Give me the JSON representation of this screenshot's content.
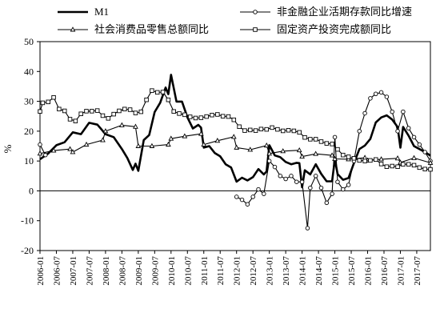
{
  "chart_data": {
    "type": "line",
    "ylabel": "%",
    "ylim": [
      -20,
      50
    ],
    "yticks": [
      -20,
      -10,
      0,
      10,
      20,
      30,
      40,
      50
    ],
    "x_tick_labels": [
      "2006-01",
      "2006-07",
      "2007-01",
      "2007-07",
      "2008-01",
      "2008-07",
      "2009-01",
      "2009-07",
      "2010-01",
      "2010-07",
      "2011-01",
      "2011-07",
      "2012-01",
      "2012-07",
      "2013-01",
      "2013-07",
      "2014-01",
      "2014-07",
      "2015-01",
      "2015-07",
      "2016-01",
      "2016-07",
      "2017-01",
      "2017-07"
    ],
    "x_range": [
      "2006-01",
      "2017-12"
    ],
    "legend_position": "top",
    "series": [
      {
        "name": "M1",
        "style": "thick-line",
        "color": "#000000",
        "points": [
          [
            "2006-01",
            10.6
          ],
          [
            "2006-04",
            12.5
          ],
          [
            "2006-07",
            15.3
          ],
          [
            "2006-10",
            16.3
          ],
          [
            "2007-01",
            19.6
          ],
          [
            "2007-04",
            19.0
          ],
          [
            "2007-07",
            22.8
          ],
          [
            "2007-10",
            22.2
          ],
          [
            "2008-01",
            19.0
          ],
          [
            "2008-04",
            18.0
          ],
          [
            "2008-07",
            14.0
          ],
          [
            "2008-09",
            11.0
          ],
          [
            "2008-11",
            7.0
          ],
          [
            "2008-12",
            9.1
          ],
          [
            "2009-01",
            6.7
          ],
          [
            "2009-03",
            17.0
          ],
          [
            "2009-05",
            18.7
          ],
          [
            "2009-07",
            26.4
          ],
          [
            "2009-09",
            29.5
          ],
          [
            "2009-11",
            34.6
          ],
          [
            "2009-12",
            32.4
          ],
          [
            "2010-01",
            38.9
          ],
          [
            "2010-03",
            29.9
          ],
          [
            "2010-05",
            29.9
          ],
          [
            "2010-07",
            24.6
          ],
          [
            "2010-09",
            20.9
          ],
          [
            "2010-11",
            22.1
          ],
          [
            "2010-12",
            21.2
          ],
          [
            "2011-01",
            14.5
          ],
          [
            "2011-03",
            15.0
          ],
          [
            "2011-05",
            12.7
          ],
          [
            "2011-07",
            11.6
          ],
          [
            "2011-09",
            8.9
          ],
          [
            "2011-11",
            7.8
          ],
          [
            "2012-01",
            3.1
          ],
          [
            "2012-03",
            4.4
          ],
          [
            "2012-05",
            3.5
          ],
          [
            "2012-07",
            4.6
          ],
          [
            "2012-09",
            7.3
          ],
          [
            "2012-11",
            5.5
          ],
          [
            "2012-12",
            6.5
          ],
          [
            "2013-01",
            15.3
          ],
          [
            "2013-03",
            11.9
          ],
          [
            "2013-05",
            11.3
          ],
          [
            "2013-07",
            9.7
          ],
          [
            "2013-09",
            8.9
          ],
          [
            "2013-11",
            9.4
          ],
          [
            "2013-12",
            9.3
          ],
          [
            "2014-01",
            1.2
          ],
          [
            "2014-02",
            6.9
          ],
          [
            "2014-04",
            5.5
          ],
          [
            "2014-06",
            8.9
          ],
          [
            "2014-08",
            5.7
          ],
          [
            "2014-10",
            3.2
          ],
          [
            "2014-12",
            3.2
          ],
          [
            "2015-01",
            10.6
          ],
          [
            "2015-02",
            5.6
          ],
          [
            "2015-04",
            3.7
          ],
          [
            "2015-06",
            4.3
          ],
          [
            "2015-08",
            9.3
          ],
          [
            "2015-10",
            14.0
          ],
          [
            "2015-12",
            15.2
          ],
          [
            "2016-02",
            17.4
          ],
          [
            "2016-04",
            22.9
          ],
          [
            "2016-06",
            24.6
          ],
          [
            "2016-08",
            25.3
          ],
          [
            "2016-10",
            23.9
          ],
          [
            "2016-12",
            21.4
          ],
          [
            "2017-01",
            14.5
          ],
          [
            "2017-02",
            21.4
          ],
          [
            "2017-04",
            18.5
          ],
          [
            "2017-06",
            15.0
          ],
          [
            "2017-08",
            14.0
          ],
          [
            "2017-10",
            13.0
          ],
          [
            "2017-12",
            11.8
          ]
        ]
      },
      {
        "name": "非金融企业活期存款同比增速",
        "style": "line-circle",
        "color": "#000000",
        "points": [
          [
            "2006-01",
            15.5
          ],
          [
            "2006-03",
            12.0
          ],
          [
            "2012-01",
            -2.0
          ],
          [
            "2012-03",
            -3.0
          ],
          [
            "2012-05",
            -4.5
          ],
          [
            "2012-07",
            -2.0
          ],
          [
            "2012-09",
            0.5
          ],
          [
            "2012-11",
            -1.0
          ],
          [
            "2013-01",
            10.0
          ],
          [
            "2013-03",
            8.0
          ],
          [
            "2013-05",
            5.0
          ],
          [
            "2013-07",
            4.0
          ],
          [
            "2013-09",
            5.0
          ],
          [
            "2013-11",
            3.0
          ],
          [
            "2014-01",
            3.0
          ],
          [
            "2014-03",
            -12.5
          ],
          [
            "2014-04",
            1.0
          ],
          [
            "2014-06",
            5.0
          ],
          [
            "2014-08",
            1.0
          ],
          [
            "2014-10",
            -4.0
          ],
          [
            "2014-12",
            -1.0
          ],
          [
            "2015-01",
            18.0
          ],
          [
            "2015-02",
            3.0
          ],
          [
            "2015-04",
            0.5
          ],
          [
            "2015-06",
            2.0
          ],
          [
            "2015-08",
            10.0
          ],
          [
            "2015-10",
            20.0
          ],
          [
            "2015-12",
            26.0
          ],
          [
            "2016-02",
            31.0
          ],
          [
            "2016-04",
            32.5
          ],
          [
            "2016-06",
            33.0
          ],
          [
            "2016-08",
            31.5
          ],
          [
            "2016-10",
            26.5
          ],
          [
            "2016-12",
            20.0
          ],
          [
            "2017-02",
            26.5
          ],
          [
            "2017-04",
            21.0
          ],
          [
            "2017-06",
            18.0
          ],
          [
            "2017-08",
            15.5
          ],
          [
            "2017-10",
            13.0
          ],
          [
            "2017-12",
            10.0
          ]
        ]
      },
      {
        "name": "社会消费品零售总额同比",
        "style": "line-triangle",
        "color": "#000000",
        "points": [
          [
            "2006-01",
            12.5
          ],
          [
            "2006-06",
            13.5
          ],
          [
            "2006-12",
            14.0
          ],
          [
            "2007-01",
            13.0
          ],
          [
            "2007-06",
            15.5
          ],
          [
            "2007-12",
            17.0
          ],
          [
            "2008-01",
            20.0
          ],
          [
            "2008-07",
            22.0
          ],
          [
            "2008-12",
            21.5
          ],
          [
            "2009-01",
            15.0
          ],
          [
            "2009-06",
            15.0
          ],
          [
            "2009-12",
            15.5
          ],
          [
            "2010-01",
            17.5
          ],
          [
            "2010-06",
            18.3
          ],
          [
            "2010-12",
            19.1
          ],
          [
            "2011-01",
            15.5
          ],
          [
            "2011-06",
            16.8
          ],
          [
            "2011-12",
            18.1
          ],
          [
            "2012-01",
            14.5
          ],
          [
            "2012-06",
            13.8
          ],
          [
            "2012-12",
            15.2
          ],
          [
            "2013-01",
            12.5
          ],
          [
            "2013-06",
            13.3
          ],
          [
            "2013-12",
            13.6
          ],
          [
            "2014-01",
            11.5
          ],
          [
            "2014-06",
            12.4
          ],
          [
            "2014-12",
            11.9
          ],
          [
            "2015-01",
            10.7
          ],
          [
            "2015-06",
            10.6
          ],
          [
            "2015-12",
            11.1
          ],
          [
            "2016-01",
            10.2
          ],
          [
            "2016-06",
            10.6
          ],
          [
            "2016-12",
            10.9
          ],
          [
            "2017-01",
            9.5
          ],
          [
            "2017-06",
            11.0
          ],
          [
            "2017-12",
            9.4
          ]
        ]
      },
      {
        "name": "固定资产投资完成额同比",
        "style": "line-square",
        "color": "#000000",
        "points": [
          [
            "2006-01",
            26.6
          ],
          [
            "2006-02",
            29.5
          ],
          [
            "2006-04",
            29.8
          ],
          [
            "2006-06",
            31.3
          ],
          [
            "2006-08",
            27.4
          ],
          [
            "2006-10",
            26.8
          ],
          [
            "2006-12",
            24.0
          ],
          [
            "2007-02",
            23.4
          ],
          [
            "2007-04",
            25.8
          ],
          [
            "2007-06",
            26.7
          ],
          [
            "2007-08",
            26.7
          ],
          [
            "2007-10",
            26.9
          ],
          [
            "2007-12",
            25.2
          ],
          [
            "2008-02",
            24.3
          ],
          [
            "2008-04",
            25.7
          ],
          [
            "2008-06",
            26.8
          ],
          [
            "2008-08",
            27.4
          ],
          [
            "2008-10",
            27.2
          ],
          [
            "2008-12",
            26.1
          ],
          [
            "2009-02",
            26.5
          ],
          [
            "2009-04",
            30.5
          ],
          [
            "2009-06",
            33.6
          ],
          [
            "2009-08",
            33.0
          ],
          [
            "2009-10",
            33.1
          ],
          [
            "2009-12",
            30.5
          ],
          [
            "2010-02",
            26.6
          ],
          [
            "2010-04",
            25.9
          ],
          [
            "2010-06",
            25.5
          ],
          [
            "2010-08",
            24.8
          ],
          [
            "2010-10",
            24.4
          ],
          [
            "2010-12",
            24.5
          ],
          [
            "2011-02",
            24.9
          ],
          [
            "2011-04",
            25.4
          ],
          [
            "2011-06",
            25.6
          ],
          [
            "2011-08",
            25.0
          ],
          [
            "2011-10",
            24.9
          ],
          [
            "2011-12",
            23.8
          ],
          [
            "2012-02",
            21.5
          ],
          [
            "2012-04",
            20.2
          ],
          [
            "2012-06",
            20.4
          ],
          [
            "2012-08",
            20.2
          ],
          [
            "2012-10",
            20.7
          ],
          [
            "2012-12",
            20.6
          ],
          [
            "2013-02",
            21.2
          ],
          [
            "2013-04",
            20.6
          ],
          [
            "2013-06",
            20.1
          ],
          [
            "2013-08",
            20.3
          ],
          [
            "2013-10",
            20.1
          ],
          [
            "2013-12",
            19.6
          ],
          [
            "2014-02",
            17.9
          ],
          [
            "2014-04",
            17.3
          ],
          [
            "2014-06",
            17.3
          ],
          [
            "2014-08",
            16.5
          ],
          [
            "2014-10",
            15.9
          ],
          [
            "2014-12",
            15.7
          ],
          [
            "2015-02",
            13.9
          ],
          [
            "2015-04",
            12.0
          ],
          [
            "2015-06",
            11.4
          ],
          [
            "2015-08",
            10.9
          ],
          [
            "2015-10",
            10.2
          ],
          [
            "2015-12",
            10.0
          ],
          [
            "2016-02",
            10.2
          ],
          [
            "2016-04",
            10.5
          ],
          [
            "2016-06",
            9.0
          ],
          [
            "2016-08",
            8.1
          ],
          [
            "2016-10",
            8.3
          ],
          [
            "2016-12",
            8.1
          ],
          [
            "2017-02",
            8.9
          ],
          [
            "2017-04",
            8.9
          ],
          [
            "2017-06",
            8.6
          ],
          [
            "2017-08",
            7.8
          ],
          [
            "2017-10",
            7.3
          ],
          [
            "2017-12",
            7.2
          ]
        ]
      }
    ]
  }
}
